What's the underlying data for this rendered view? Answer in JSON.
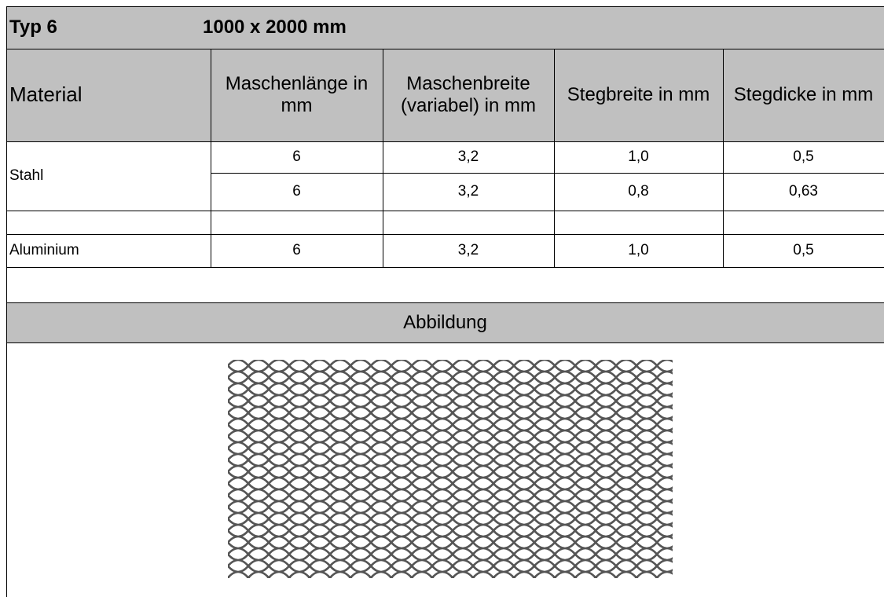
{
  "header": {
    "type": "Typ  6",
    "size": "1000 x 2000 mm"
  },
  "table": {
    "columns": [
      "Material",
      "Maschenlänge in mm",
      "Maschenbreite (variabel) in mm",
      "Stegbreite in mm",
      "Stegdicke in mm"
    ],
    "groups": [
      {
        "material": "Stahl",
        "rows": [
          [
            "6",
            "3,2",
            "1,0",
            "0,5"
          ],
          [
            "6",
            "3,2",
            "0,8",
            "0,63"
          ]
        ]
      },
      {
        "material": "Aluminium",
        "rows": [
          [
            "6",
            "3,2",
            "1,0",
            "0,5"
          ]
        ]
      }
    ]
  },
  "figure": {
    "caption": "Abbildung"
  }
}
